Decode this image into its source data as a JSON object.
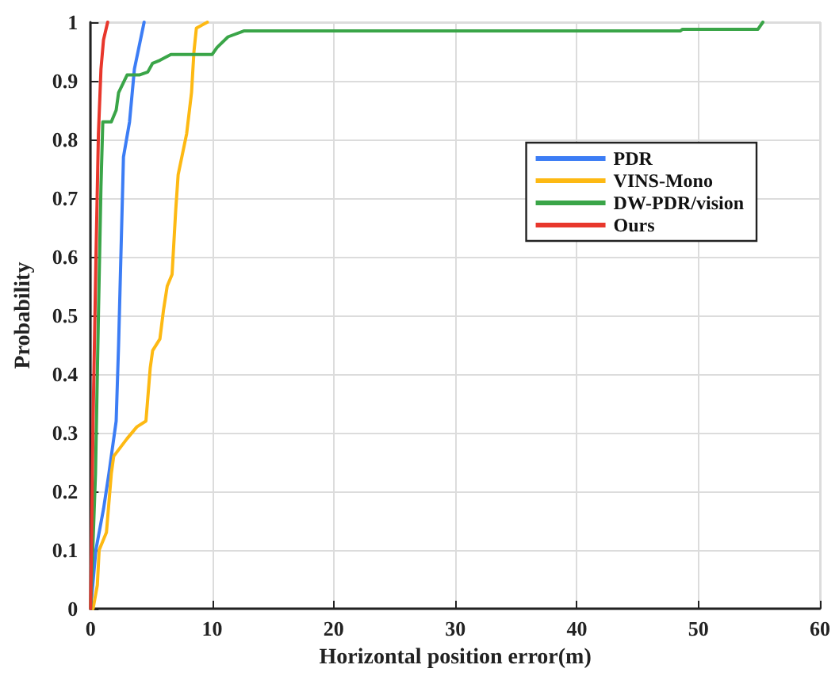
{
  "chart_data": {
    "type": "line",
    "xlabel": "Horizontal position error(m)",
    "ylabel": "Probability",
    "xlim": [
      0,
      60
    ],
    "xticks": [
      0,
      10,
      20,
      30,
      40,
      50,
      60
    ],
    "ylim": [
      0,
      1
    ],
    "yticks": [
      0,
      0.1,
      0.2,
      0.3,
      0.4,
      0.5,
      0.6,
      0.7,
      0.8,
      0.9,
      1
    ],
    "grid": true,
    "legend": "right",
    "marker": "none",
    "line_style": "solid",
    "series": [
      {
        "name": "PDR",
        "color": "#3c7df5",
        "x": [
          0,
          0.43,
          1.06,
          1.5,
          1.7,
          2.1,
          2.3,
          2.5,
          2.7,
          3.2,
          3.6,
          4.4
        ],
        "values": [
          0,
          0.1,
          0.17,
          0.23,
          0.26,
          0.32,
          0.45,
          0.61,
          0.77,
          0.83,
          0.92,
          1
        ]
      },
      {
        "name": "VINS-Mono",
        "color": "#fdb913",
        "x": [
          0.2,
          0.55,
          0.7,
          1.3,
          1.7,
          1.9,
          3.0,
          3.8,
          4.55,
          4.9,
          5.1,
          5.7,
          6.0,
          6.3,
          6.7,
          7.0,
          7.2,
          7.9,
          8.3,
          8.5,
          8.7,
          9.6
        ],
        "values": [
          0,
          0.04,
          0.1,
          0.13,
          0.23,
          0.26,
          0.29,
          0.31,
          0.32,
          0.41,
          0.44,
          0.46,
          0.51,
          0.55,
          0.57,
          0.68,
          0.74,
          0.81,
          0.88,
          0.95,
          0.99,
          1
        ]
      },
      {
        "name": "DW-PDR/vision",
        "color": "#3aa548",
        "x": [
          0,
          0.4,
          0.64,
          0.85,
          1.0,
          1.7,
          2.1,
          2.3,
          3.0,
          4.0,
          4.7,
          5.1,
          5.7,
          6.6,
          10.0,
          10.4,
          11.3,
          12.6,
          48.5,
          48.7,
          54.9,
          55.3
        ],
        "values": [
          0,
          0.23,
          0.5,
          0.72,
          0.83,
          0.83,
          0.85,
          0.88,
          0.91,
          0.91,
          0.915,
          0.93,
          0.935,
          0.945,
          0.945,
          0.957,
          0.975,
          0.985,
          0.985,
          0.988,
          0.988,
          1
        ]
      },
      {
        "name": "Ours",
        "color": "#e8372c",
        "x": [
          0,
          0.2,
          0.43,
          0.64,
          0.85,
          1.06,
          1.4
        ],
        "values": [
          0,
          0.32,
          0.59,
          0.81,
          0.92,
          0.97,
          1
        ]
      }
    ]
  }
}
